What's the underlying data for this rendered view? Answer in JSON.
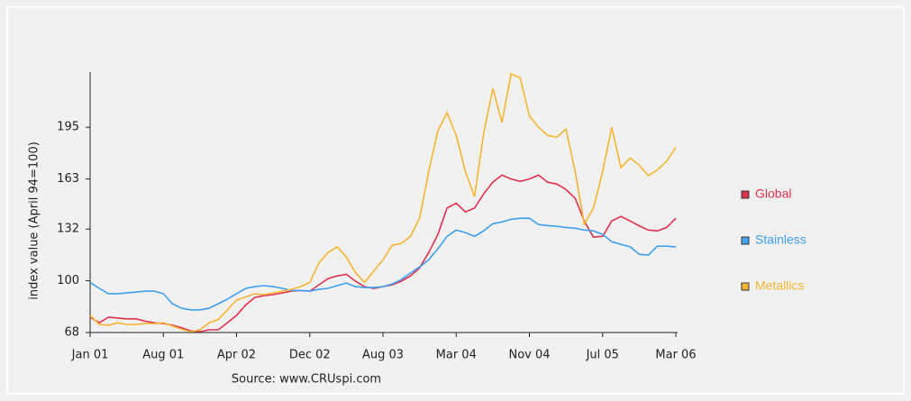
{
  "chart_data": {
    "type": "line",
    "y_label": "index value (April 94=100)",
    "source": "Source: www.CRUspi.com",
    "categories": [
      "Jan 01",
      null,
      null,
      null,
      null,
      null,
      null,
      null,
      "Aug 01",
      null,
      null,
      null,
      null,
      null,
      null,
      null,
      "Apr 02",
      null,
      null,
      null,
      null,
      null,
      null,
      null,
      "Dec 02",
      null,
      null,
      null,
      null,
      null,
      null,
      null,
      "Aug 03",
      null,
      null,
      null,
      null,
      null,
      null,
      null,
      "Mar 04",
      null,
      null,
      null,
      null,
      null,
      null,
      null,
      "Nov 04",
      null,
      null,
      null,
      null,
      null,
      null,
      null,
      "Jul 05",
      null,
      null,
      null,
      null,
      null,
      null,
      null,
      "Mar 06"
    ],
    "ylim": [
      68,
      228
    ],
    "yticks": [
      68,
      100,
      132,
      163,
      195
    ],
    "series": [
      {
        "name": "Global",
        "color": "#e0304e",
        "values": [
          77.5,
          74,
          77.5,
          77,
          76.5,
          76.5,
          75,
          74,
          73.5,
          72.5,
          71,
          69,
          68.5,
          69.7,
          69.7,
          74,
          78.6,
          85,
          89.7,
          90.8,
          91.4,
          92.5,
          93.6,
          94,
          93.6,
          97.5,
          101.4,
          103,
          104,
          99.7,
          96.4,
          95.3,
          96.4,
          97.5,
          99.7,
          103,
          108,
          117.5,
          128.6,
          145,
          148,
          142.6,
          145,
          153.7,
          161,
          165.4,
          163,
          161.5,
          163,
          165.4,
          161,
          159.8,
          156.5,
          151,
          137,
          127,
          127.5,
          137,
          139.8,
          137,
          134,
          131.4,
          130.9,
          133,
          138.7
        ]
      },
      {
        "name": "Stainless",
        "color": "#3fa0f0",
        "values": [
          99,
          95.3,
          92,
          92,
          92.5,
          93,
          93.6,
          93.6,
          92,
          85.8,
          83,
          82,
          82,
          83,
          85.8,
          88.6,
          92,
          95.3,
          96.4,
          97,
          96.4,
          95.3,
          94,
          94,
          93.6,
          94.7,
          95.3,
          97,
          98.6,
          96.4,
          95.8,
          95.8,
          96.4,
          98,
          100.8,
          104.7,
          108.6,
          113,
          119.8,
          127.5,
          131.4,
          129.8,
          127.5,
          130.9,
          135.3,
          136.4,
          138,
          138.7,
          138.7,
          134.8,
          134.2,
          133.7,
          133,
          132.5,
          131.4,
          130.9,
          128.7,
          124.2,
          122.5,
          121,
          116.4,
          115.9,
          121.4,
          121.4,
          121
        ]
      },
      {
        "name": "Metallics",
        "color": "#f5b530",
        "values": [
          78.6,
          73,
          72.5,
          74,
          73,
          73,
          73.5,
          73.5,
          74,
          72,
          70,
          68.5,
          69.7,
          74,
          76,
          82,
          88,
          90,
          92,
          91.4,
          92.5,
          93.6,
          94.7,
          96.4,
          99,
          111,
          117.5,
          121,
          114.7,
          105,
          99,
          106,
          113,
          122,
          123,
          127.5,
          138.7,
          167.6,
          192.7,
          204,
          190,
          167.6,
          152,
          191,
          219,
          198,
          228,
          225.5,
          202,
          195,
          190,
          188.8,
          193.8,
          167.6,
          135,
          145,
          167.6,
          195,
          170,
          176,
          171.5,
          165,
          168.7,
          174,
          182.6
        ]
      }
    ]
  }
}
